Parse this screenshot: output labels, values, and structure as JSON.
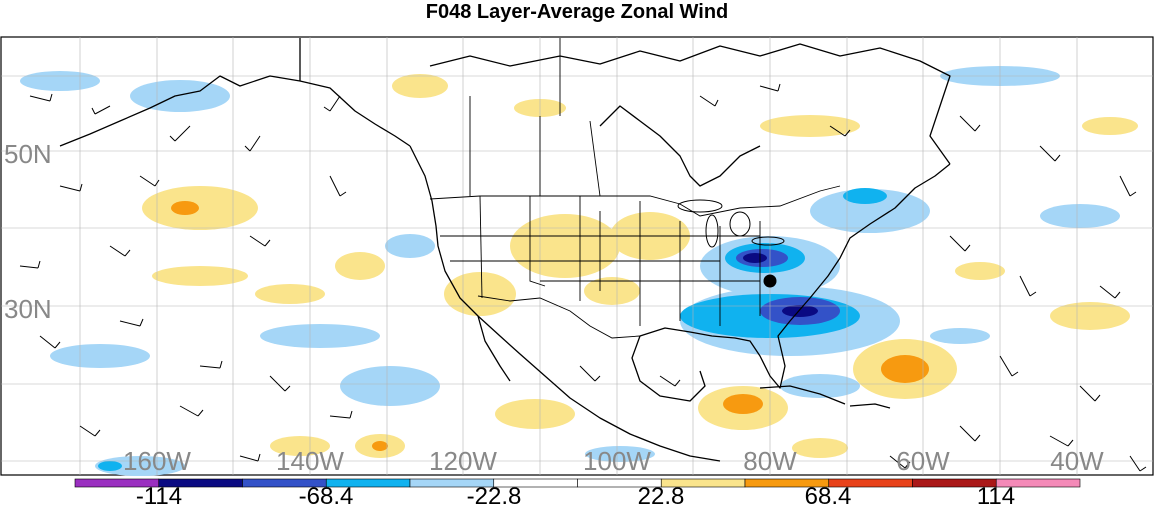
{
  "title": "F048 Layer-Average Zonal Wind",
  "lat_labels": [
    "50N",
    "30N"
  ],
  "lon_labels": [
    "160W",
    "140W",
    "120W",
    "100W",
    "80W",
    "60W",
    "40W"
  ],
  "colorbar": {
    "colors": [
      "#9a2fc0",
      "#0a0a82",
      "#3352c8",
      "#10b2ef",
      "#a5d6f7",
      "#ffffff",
      "#ffffff",
      "#fae48c",
      "#f79a10",
      "#e8421a",
      "#aa1818",
      "#f48ab8"
    ],
    "labels": [
      "-114",
      "-68.4",
      "-22.8",
      "22.8",
      "68.4",
      "114"
    ]
  }
}
